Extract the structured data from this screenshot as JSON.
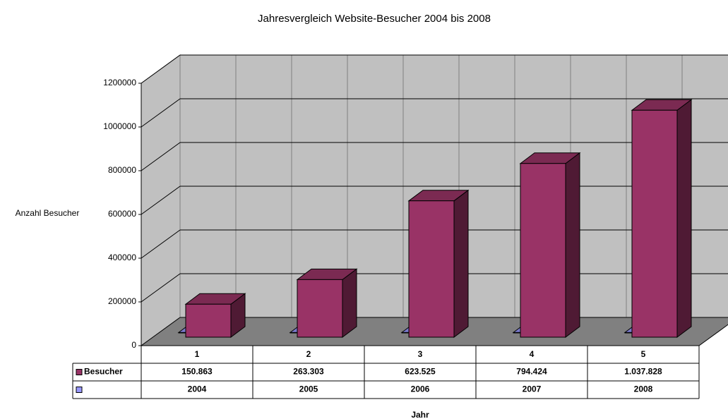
{
  "chart_data": {
    "type": "bar",
    "title": "Jahresvergleich Website-Besucher 2004 bis 2008",
    "ylabel": "Anzahl Besucher",
    "xlabel": "Jahr",
    "categories": [
      "1",
      "2",
      "3",
      "4",
      "5"
    ],
    "series": [
      {
        "name": "Besucher",
        "color": "#993366",
        "values": [
          150863,
          263303,
          623525,
          794424,
          1037828
        ],
        "value_labels": [
          "150.863",
          "263.303",
          "623.525",
          "794.424",
          "1.037.828"
        ]
      },
      {
        "color": "#9999ff",
        "values": [
          2004,
          2005,
          2006,
          2007,
          2008
        ]
      }
    ],
    "ylim": [
      0,
      1200000
    ],
    "yticks": [
      0,
      200000,
      400000,
      600000,
      800000,
      1000000,
      1200000
    ],
    "grid": true
  }
}
